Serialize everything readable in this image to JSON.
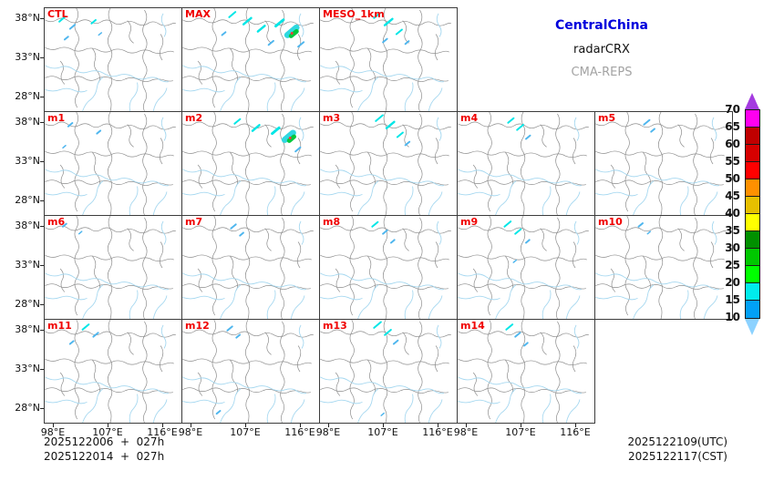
{
  "title": {
    "region": "CentralChina",
    "product": "radarCRX",
    "system": "CMA-REPS"
  },
  "colors": {
    "region_title": "#0000dc",
    "product_title": "#111111",
    "system_title": "#a3a3a3",
    "panel_label": "#f00000",
    "map_border": "#8c8c8c",
    "river": "#a6d8f0",
    "frame": "#3c3c3c"
  },
  "axes": {
    "y_ticks": [
      "38°N",
      "33°N",
      "28°N"
    ],
    "x_ticks": [
      "98°E",
      "107°E",
      "116°E"
    ]
  },
  "footer": {
    "left_line1": "2025122006  +  027h",
    "left_line2": "2025122014  +  027h",
    "right_line1": "2025122109(UTC)",
    "right_line2": "2025122117(CST)"
  },
  "colorbar": {
    "labels": [
      "70",
      "65",
      "60",
      "55",
      "50",
      "45",
      "40",
      "35",
      "30",
      "25",
      "20",
      "15",
      "10"
    ],
    "segments_top_to_bottom": [
      "#FF00F0",
      "#C00000",
      "#D60000",
      "#FF0000",
      "#FF9000",
      "#E7C000",
      "#FFFF00",
      "#019000",
      "#00C800",
      "#00FF00",
      "#00ECEC",
      "#01A0F6"
    ],
    "arrow_top": "#A43CE0",
    "arrow_bottom": "#8CD2FF"
  },
  "panels": [
    {
      "label": "CTL",
      "row": 0,
      "col": 0,
      "echoes": [
        [
          16,
          15,
          9,
          2,
          "#00E6E6"
        ],
        [
          28,
          23,
          7,
          2,
          "#4FB6EE"
        ],
        [
          52,
          17,
          6,
          2,
          "#00E6E6"
        ],
        [
          22,
          35,
          5,
          2,
          "#4FB6EE"
        ],
        [
          60,
          30,
          4,
          1.5,
          "#4FB6EE"
        ]
      ]
    },
    {
      "label": "MAX",
      "row": 0,
      "col": 1,
      "echoes": [
        [
          52,
          10,
          9,
          2,
          "#00E6E6"
        ],
        [
          68,
          18,
          11,
          2.5,
          "#00E6E6"
        ],
        [
          84,
          26,
          10,
          2.5,
          "#00E6E6"
        ],
        [
          104,
          20,
          11,
          3,
          "#00E6E6"
        ],
        [
          117,
          30,
          13,
          7,
          "#2FD8E0"
        ],
        [
          121,
          31,
          8,
          5,
          "#00C83C"
        ],
        [
          122,
          28,
          0,
          1.5,
          "#FF3838"
        ],
        [
          129,
          43,
          8,
          2,
          "#4FB6EE"
        ],
        [
          96,
          41,
          7,
          2,
          "#4FB6EE"
        ],
        [
          44,
          30,
          5,
          2,
          "#4FB6EE"
        ]
      ]
    },
    {
      "label": "MESO_1km",
      "row": 0,
      "col": 2,
      "echoes": [
        [
          60,
          11,
          9,
          2,
          "#00E6E6"
        ],
        [
          72,
          19,
          11,
          2.5,
          "#00E6E6"
        ],
        [
          85,
          29,
          8,
          2,
          "#00E6E6"
        ],
        [
          70,
          38,
          6,
          2,
          "#4FB6EE"
        ],
        [
          95,
          40,
          5,
          2,
          "#4FB6EE"
        ]
      ]
    },
    {
      "label": "m1",
      "row": 1,
      "col": 0,
      "echoes": [
        [
          26,
          16,
          6,
          2,
          "#4FB6EE"
        ],
        [
          58,
          24,
          5,
          2,
          "#4FB6EE"
        ],
        [
          20,
          40,
          4,
          1.5,
          "#4FB6EE"
        ]
      ]
    },
    {
      "label": "m2",
      "row": 1,
      "col": 1,
      "echoes": [
        [
          58,
          13,
          8,
          2,
          "#00E6E6"
        ],
        [
          78,
          21,
          10,
          2.5,
          "#00E6E6"
        ],
        [
          100,
          24,
          10,
          3,
          "#00E6E6"
        ],
        [
          114,
          31,
          12,
          7,
          "#2FD8E0"
        ],
        [
          119,
          32,
          7,
          5,
          "#00C83C"
        ],
        [
          120,
          29,
          0,
          1.5,
          "#FF3838"
        ],
        [
          126,
          44,
          7,
          2,
          "#4FB6EE"
        ]
      ]
    },
    {
      "label": "m3",
      "row": 1,
      "col": 2,
      "echoes": [
        [
          62,
          10,
          10,
          2,
          "#00E6E6"
        ],
        [
          74,
          18,
          11,
          2.5,
          "#00E6E6"
        ],
        [
          86,
          28,
          8,
          2,
          "#00E6E6"
        ],
        [
          95,
          37,
          6,
          2,
          "#4FB6EE"
        ]
      ]
    },
    {
      "label": "m4",
      "row": 1,
      "col": 3,
      "echoes": [
        [
          56,
          12,
          8,
          2,
          "#00E6E6"
        ],
        [
          66,
          20,
          9,
          2,
          "#00E6E6"
        ],
        [
          76,
          30,
          6,
          2,
          "#4FB6EE"
        ]
      ]
    },
    {
      "label": "m5",
      "row": 1,
      "col": 4,
      "echoes": [
        [
          54,
          14,
          8,
          2,
          "#4FB6EE"
        ],
        [
          62,
          22,
          5,
          2,
          "#4FB6EE"
        ]
      ]
    },
    {
      "label": "m6",
      "row": 2,
      "col": 0,
      "echoes": [
        [
          20,
          12,
          5,
          2,
          "#4FB6EE"
        ],
        [
          38,
          20,
          4,
          1.5,
          "#4FB6EE"
        ]
      ]
    },
    {
      "label": "m7",
      "row": 2,
      "col": 1,
      "echoes": [
        [
          54,
          14,
          7,
          2,
          "#4FB6EE"
        ],
        [
          64,
          22,
          5,
          2,
          "#4FB6EE"
        ]
      ]
    },
    {
      "label": "m8",
      "row": 2,
      "col": 2,
      "echoes": [
        [
          58,
          12,
          8,
          2,
          "#00E6E6"
        ],
        [
          70,
          20,
          6,
          2,
          "#4FB6EE"
        ],
        [
          79,
          30,
          5,
          2,
          "#4FB6EE"
        ]
      ]
    },
    {
      "label": "m9",
      "row": 2,
      "col": 3,
      "echoes": [
        [
          52,
          12,
          9,
          2,
          "#00E6E6"
        ],
        [
          64,
          20,
          8,
          2,
          "#00E6E6"
        ],
        [
          76,
          30,
          5,
          2,
          "#4FB6EE"
        ],
        [
          62,
          52,
          4,
          1.5,
          "#4FB6EE"
        ]
      ]
    },
    {
      "label": "m10",
      "row": 2,
      "col": 4,
      "echoes": [
        [
          48,
          12,
          6,
          2,
          "#4FB6EE"
        ],
        [
          58,
          20,
          4,
          1.5,
          "#4FB6EE"
        ]
      ]
    },
    {
      "label": "m11",
      "row": 3,
      "col": 0,
      "echoes": [
        [
          42,
          11,
          9,
          2,
          "#00E6E6"
        ],
        [
          54,
          19,
          7,
          2,
          "#4FB6EE"
        ],
        [
          28,
          27,
          5,
          2,
          "#4FB6EE"
        ]
      ]
    },
    {
      "label": "m12",
      "row": 3,
      "col": 1,
      "echoes": [
        [
          50,
          12,
          7,
          2,
          "#4FB6EE"
        ],
        [
          60,
          20,
          5,
          2,
          "#4FB6EE"
        ],
        [
          38,
          105,
          5,
          2,
          "#4FB6EE"
        ]
      ]
    },
    {
      "label": "m13",
      "row": 3,
      "col": 2,
      "echoes": [
        [
          60,
          9,
          10,
          2,
          "#00E6E6"
        ],
        [
          72,
          17,
          9,
          2,
          "#00E6E6"
        ],
        [
          82,
          27,
          6,
          2,
          "#4FB6EE"
        ],
        [
          68,
          107,
          4,
          1.5,
          "#4FB6EE"
        ]
      ]
    },
    {
      "label": "m14",
      "row": 3,
      "col": 3,
      "echoes": [
        [
          54,
          11,
          9,
          2,
          "#00E6E6"
        ],
        [
          64,
          19,
          7,
          2,
          "#4FB6EE"
        ],
        [
          74,
          29,
          5,
          2,
          "#4FB6EE"
        ]
      ]
    }
  ],
  "chart_data": {
    "type": "heatmap",
    "title": "CentralChina radarCRX — CMA-REPS ensemble composite reflectivity forecast",
    "panel_labels": [
      "CTL",
      "MAX",
      "MESO_1km",
      "m1",
      "m2",
      "m3",
      "m4",
      "m5",
      "m6",
      "m7",
      "m8",
      "m9",
      "m10",
      "m11",
      "m12",
      "m13",
      "m14"
    ],
    "grid_rows": [
      [
        "CTL",
        "MAX",
        "MESO_1km"
      ],
      [
        "m1",
        "m2",
        "m3",
        "m4",
        "m5"
      ],
      [
        "m6",
        "m7",
        "m8",
        "m9",
        "m10"
      ],
      [
        "m11",
        "m12",
        "m13",
        "m14"
      ]
    ],
    "x_tick_labels": [
      "98°E",
      "107°E",
      "116°E"
    ],
    "y_tick_labels": [
      "38°N",
      "33°N",
      "28°N"
    ],
    "colorbar_levels_dBZ": [
      10,
      15,
      20,
      25,
      30,
      35,
      40,
      45,
      50,
      55,
      60,
      65,
      70
    ],
    "init_plus_lead": [
      "2025122006 + 027h",
      "2025122014 + 027h"
    ],
    "valid_time": [
      "2025122109(UTC)",
      "2025122117(CST)"
    ]
  }
}
